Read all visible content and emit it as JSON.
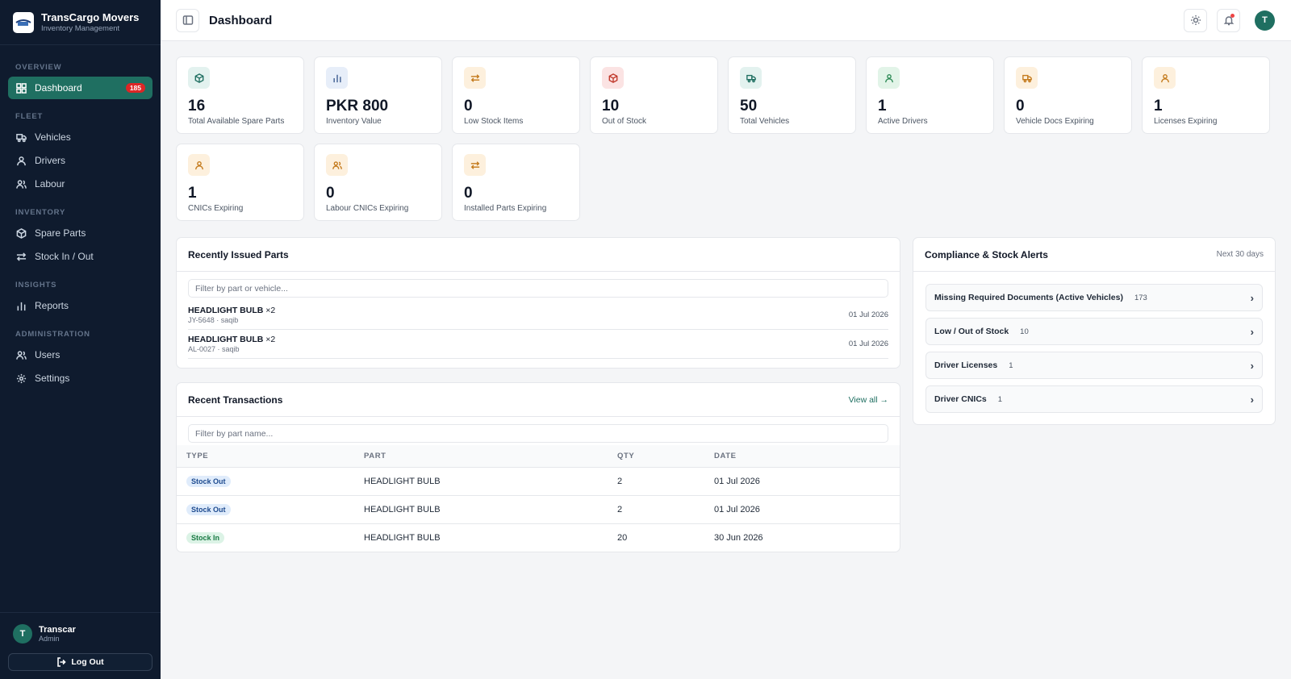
{
  "brand": {
    "name": "TransCargo Movers",
    "subtitle": "Inventory Management"
  },
  "nav": {
    "sections": {
      "overview": "OVERVIEW",
      "fleet": "FLEET",
      "inventory": "INVENTORY",
      "insights": "INSIGHTS",
      "administration": "ADMINISTRATION"
    },
    "items": {
      "dashboard": {
        "label": "Dashboard",
        "badge": "185"
      },
      "vehicles": {
        "label": "Vehicles"
      },
      "drivers": {
        "label": "Drivers"
      },
      "labour": {
        "label": "Labour"
      },
      "spare_parts": {
        "label": "Spare Parts"
      },
      "stock": {
        "label": "Stock In / Out"
      },
      "reports": {
        "label": "Reports"
      },
      "users": {
        "label": "Users"
      },
      "settings": {
        "label": "Settings"
      }
    }
  },
  "user": {
    "initial": "T",
    "name": "Transcar",
    "role": "Admin",
    "logout": "Log Out"
  },
  "header": {
    "title": "Dashboard",
    "avatar_initial": "T"
  },
  "stats": [
    {
      "value": "16",
      "label": "Total Available Spare Parts",
      "icon": "box-icon",
      "tone": "teal"
    },
    {
      "value": "PKR 800",
      "label": "Inventory Value",
      "icon": "bar-chart-icon",
      "tone": "blue"
    },
    {
      "value": "0",
      "label": "Low Stock Items",
      "icon": "swap-icon",
      "tone": "amber"
    },
    {
      "value": "10",
      "label": "Out of Stock",
      "icon": "box-icon",
      "tone": "red"
    },
    {
      "value": "50",
      "label": "Total Vehicles",
      "icon": "truck-icon",
      "tone": "teal"
    },
    {
      "value": "1",
      "label": "Active Drivers",
      "icon": "user-icon",
      "tone": "green"
    },
    {
      "value": "0",
      "label": "Vehicle Docs Expiring",
      "icon": "truck-icon",
      "tone": "amber"
    },
    {
      "value": "1",
      "label": "Licenses Expiring",
      "icon": "user-icon",
      "tone": "amber"
    },
    {
      "value": "1",
      "label": "CNICs Expiring",
      "icon": "user-icon",
      "tone": "amber"
    },
    {
      "value": "0",
      "label": "Labour CNICs Expiring",
      "icon": "users-icon",
      "tone": "amber"
    },
    {
      "value": "0",
      "label": "Installed Parts Expiring",
      "icon": "swap-icon",
      "tone": "amber"
    }
  ],
  "tones": {
    "teal": {
      "bg": "#e3f2ef",
      "fg": "#1f6f61"
    },
    "blue": {
      "bg": "#e7eef9",
      "fg": "#3b5b8f"
    },
    "amber": {
      "bg": "#fdf0dd",
      "fg": "#c47a1c"
    },
    "red": {
      "bg": "#fbe3e3",
      "fg": "#c0392b"
    },
    "green": {
      "bg": "#e2f4e8",
      "fg": "#2e8b57"
    }
  },
  "issued": {
    "title": "Recently Issued Parts",
    "filter_placeholder": "Filter by part or vehicle...",
    "rows": [
      {
        "part": "HEADLIGHT BULB",
        "qty": "×2",
        "meta": "JY-5648 · saqib",
        "date": "01 Jul 2026"
      },
      {
        "part": "HEADLIGHT BULB",
        "qty": "×2",
        "meta": "AL-0027 · saqib",
        "date": "01 Jul 2026"
      }
    ]
  },
  "transactions": {
    "title": "Recent Transactions",
    "view_all": "View all →",
    "filter_placeholder": "Filter by part name...",
    "columns": [
      "TYPE",
      "PART",
      "QTY",
      "DATE"
    ],
    "rows": [
      {
        "type": "Stock Out",
        "kind": "out",
        "part": "HEADLIGHT BULB",
        "qty": "2",
        "date": "01 Jul 2026"
      },
      {
        "type": "Stock Out",
        "kind": "out",
        "part": "HEADLIGHT BULB",
        "qty": "2",
        "date": "01 Jul 2026"
      },
      {
        "type": "Stock In",
        "kind": "in",
        "part": "HEADLIGHT BULB",
        "qty": "20",
        "date": "30 Jun 2026"
      }
    ]
  },
  "alerts": {
    "title": "Compliance & Stock Alerts",
    "range": "Next 30 days",
    "rows": [
      {
        "label": "Missing Required Documents (Active Vehicles)",
        "count": "173"
      },
      {
        "label": "Low / Out of Stock",
        "count": "10"
      },
      {
        "label": "Driver Licenses",
        "count": "1"
      },
      {
        "label": "Driver CNICs",
        "count": "1"
      }
    ]
  }
}
